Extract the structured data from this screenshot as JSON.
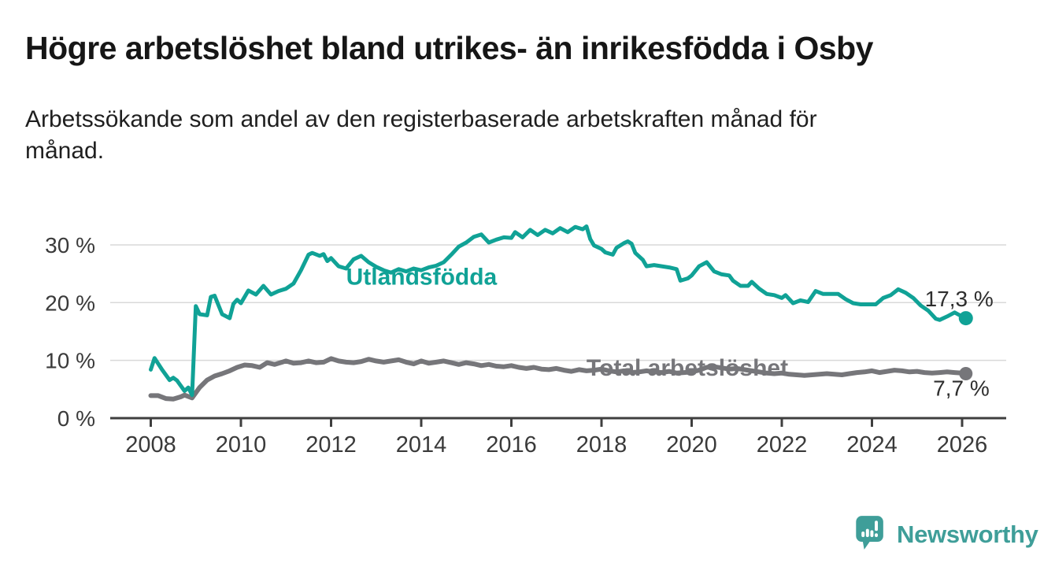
{
  "header": {
    "title": "Högre arbetslöshet bland utrikes- än inrikesfödda i Osby",
    "subtitle_line1": "Arbetssökande som andel av den registerbaserade arbetskraften månad för",
    "subtitle_line2": "månad."
  },
  "branding": {
    "logo_text": "Newsworthy",
    "logo_icon": "bar-chart-speech-bubble-icon",
    "brand_color": "#3f9e99"
  },
  "colors": {
    "foreign_born_series": "#10a296",
    "total_series": "#76767a",
    "title_text": "#161616",
    "axis_text": "#3a3a3a",
    "value_label_text": "#2e2e2e",
    "gridline": "#d9d9d9",
    "axis_line": "#3f3f3f",
    "background": "#ffffff"
  },
  "chart_data": {
    "type": "line",
    "title": "Högre arbetslöshet bland utrikes- än inrikesfödda i Osby",
    "subtitle": "Arbetssökande som andel av den registerbaserade arbetskraften månad för månad.",
    "unit": "percent of register-based labour force",
    "grid": "horizontal-only",
    "legend_position": "inline-labels-on-lines",
    "x_axis": {
      "start": "2008-01",
      "end": "2026-02",
      "tick_labels": [
        "2008",
        "2010",
        "2012",
        "2014",
        "2016",
        "2018",
        "2020",
        "2022",
        "2024",
        "2026"
      ]
    },
    "y_axis": {
      "ticks": [
        {
          "label": "0 %",
          "value": 0
        },
        {
          "label": "10 %",
          "value": 10
        },
        {
          "label": "20 %",
          "value": 20
        },
        {
          "label": "30 %",
          "value": 30
        }
      ],
      "gridline_values": [
        10,
        20,
        30
      ],
      "range": [
        0,
        34.5
      ]
    },
    "series": [
      {
        "name": "Utlandsfödda",
        "color": "#10a296",
        "stroke_width": 5,
        "label": {
          "text": "Utlandsfödda",
          "at": "2012-05",
          "value": 24.5
        },
        "end_label": {
          "text": "17,3 %",
          "value": 17.3
        },
        "points": [
          [
            "2008-01",
            8.4
          ],
          [
            "2008-02",
            10.4
          ],
          [
            "2008-04",
            8.4
          ],
          [
            "2008-06",
            6.6
          ],
          [
            "2008-07",
            7.0
          ],
          [
            "2008-08",
            6.5
          ],
          [
            "2008-10",
            4.7
          ],
          [
            "2008-11",
            5.3
          ],
          [
            "2008-12",
            4.0
          ],
          [
            "2009-01",
            19.4
          ],
          [
            "2009-02",
            18.0
          ],
          [
            "2009-04",
            17.8
          ],
          [
            "2009-05",
            21.0
          ],
          [
            "2009-06",
            21.2
          ],
          [
            "2009-08",
            18.0
          ],
          [
            "2009-10",
            17.3
          ],
          [
            "2009-11",
            19.8
          ],
          [
            "2009-12",
            20.5
          ],
          [
            "2010-01",
            19.9
          ],
          [
            "2010-03",
            22.1
          ],
          [
            "2010-05",
            21.4
          ],
          [
            "2010-07",
            22.9
          ],
          [
            "2010-09",
            21.4
          ],
          [
            "2010-11",
            22.0
          ],
          [
            "2011-01",
            22.4
          ],
          [
            "2011-03",
            23.3
          ],
          [
            "2011-05",
            25.6
          ],
          [
            "2011-07",
            28.3
          ],
          [
            "2011-08",
            28.6
          ],
          [
            "2011-10",
            28.1
          ],
          [
            "2011-11",
            28.4
          ],
          [
            "2011-12",
            27.2
          ],
          [
            "2012-01",
            27.7
          ],
          [
            "2012-03",
            26.3
          ],
          [
            "2012-05",
            25.9
          ],
          [
            "2012-07",
            27.5
          ],
          [
            "2012-09",
            28.1
          ],
          [
            "2012-11",
            27.0
          ],
          [
            "2013-01",
            26.2
          ],
          [
            "2013-03",
            25.6
          ],
          [
            "2013-05",
            25.2
          ],
          [
            "2013-07",
            25.8
          ],
          [
            "2013-09",
            25.4
          ],
          [
            "2013-11",
            25.9
          ],
          [
            "2014-01",
            25.6
          ],
          [
            "2014-03",
            26.1
          ],
          [
            "2014-05",
            26.4
          ],
          [
            "2014-07",
            27.0
          ],
          [
            "2014-09",
            28.3
          ],
          [
            "2014-11",
            29.7
          ],
          [
            "2015-01",
            30.4
          ],
          [
            "2015-03",
            31.4
          ],
          [
            "2015-05",
            31.8
          ],
          [
            "2015-07",
            30.4
          ],
          [
            "2015-09",
            30.9
          ],
          [
            "2015-11",
            31.3
          ],
          [
            "2016-01",
            31.2
          ],
          [
            "2016-02",
            32.2
          ],
          [
            "2016-04",
            31.3
          ],
          [
            "2016-06",
            32.6
          ],
          [
            "2016-08",
            31.7
          ],
          [
            "2016-10",
            32.6
          ],
          [
            "2016-12",
            32.0
          ],
          [
            "2017-02",
            32.9
          ],
          [
            "2017-04",
            32.2
          ],
          [
            "2017-06",
            33.1
          ],
          [
            "2017-08",
            32.7
          ],
          [
            "2017-09",
            33.2
          ],
          [
            "2017-10",
            31.0
          ],
          [
            "2017-11",
            29.9
          ],
          [
            "2018-01",
            29.3
          ],
          [
            "2018-02",
            28.7
          ],
          [
            "2018-04",
            28.3
          ],
          [
            "2018-05",
            29.5
          ],
          [
            "2018-07",
            30.3
          ],
          [
            "2018-08",
            30.6
          ],
          [
            "2018-09",
            30.2
          ],
          [
            "2018-10",
            28.6
          ],
          [
            "2018-12",
            27.4
          ],
          [
            "2019-01",
            26.3
          ],
          [
            "2019-03",
            26.5
          ],
          [
            "2019-05",
            26.3
          ],
          [
            "2019-07",
            26.1
          ],
          [
            "2019-09",
            25.8
          ],
          [
            "2019-10",
            23.8
          ],
          [
            "2019-12",
            24.2
          ],
          [
            "2020-01",
            24.7
          ],
          [
            "2020-03",
            26.3
          ],
          [
            "2020-05",
            27.0
          ],
          [
            "2020-07",
            25.4
          ],
          [
            "2020-09",
            24.9
          ],
          [
            "2020-11",
            24.7
          ],
          [
            "2020-12",
            23.8
          ],
          [
            "2021-02",
            22.9
          ],
          [
            "2021-04",
            22.9
          ],
          [
            "2021-05",
            23.6
          ],
          [
            "2021-07",
            22.4
          ],
          [
            "2021-09",
            21.5
          ],
          [
            "2021-11",
            21.3
          ],
          [
            "2022-01",
            20.8
          ],
          [
            "2022-02",
            21.3
          ],
          [
            "2022-04",
            19.9
          ],
          [
            "2022-06",
            20.4
          ],
          [
            "2022-08",
            20.1
          ],
          [
            "2022-10",
            22.0
          ],
          [
            "2022-12",
            21.5
          ],
          [
            "2023-02",
            21.5
          ],
          [
            "2023-04",
            21.5
          ],
          [
            "2023-06",
            20.6
          ],
          [
            "2023-08",
            19.9
          ],
          [
            "2023-10",
            19.7
          ],
          [
            "2023-12",
            19.7
          ],
          [
            "2024-02",
            19.7
          ],
          [
            "2024-04",
            20.8
          ],
          [
            "2024-06",
            21.3
          ],
          [
            "2024-08",
            22.3
          ],
          [
            "2024-10",
            21.7
          ],
          [
            "2024-12",
            20.8
          ],
          [
            "2025-02",
            19.5
          ],
          [
            "2025-04",
            18.6
          ],
          [
            "2025-06",
            17.2
          ],
          [
            "2025-07",
            17.0
          ],
          [
            "2025-09",
            17.6
          ],
          [
            "2025-11",
            18.3
          ],
          [
            "2026-01",
            17.6
          ],
          [
            "2026-02",
            17.3
          ]
        ]
      },
      {
        "name": "Total arbetslöshet",
        "color": "#76767a",
        "stroke_width": 6,
        "label": {
          "text": "Total arbetslöshet",
          "at": "2017-09",
          "value": 8.7
        },
        "end_label": {
          "text": "7,7 %",
          "value": 7.7
        },
        "points": [
          [
            "2008-01",
            3.9
          ],
          [
            "2008-03",
            3.9
          ],
          [
            "2008-05",
            3.4
          ],
          [
            "2008-07",
            3.3
          ],
          [
            "2008-09",
            3.7
          ],
          [
            "2008-10",
            4.0
          ],
          [
            "2008-12",
            3.5
          ],
          [
            "2009-02",
            5.3
          ],
          [
            "2009-04",
            6.6
          ],
          [
            "2009-06",
            7.3
          ],
          [
            "2009-08",
            7.7
          ],
          [
            "2009-10",
            8.2
          ],
          [
            "2009-12",
            8.8
          ],
          [
            "2010-02",
            9.2
          ],
          [
            "2010-04",
            9.1
          ],
          [
            "2010-06",
            8.8
          ],
          [
            "2010-08",
            9.6
          ],
          [
            "2010-10",
            9.3
          ],
          [
            "2010-12",
            9.7
          ],
          [
            "2011-01",
            9.9
          ],
          [
            "2011-03",
            9.5
          ],
          [
            "2011-05",
            9.6
          ],
          [
            "2011-07",
            9.9
          ],
          [
            "2011-09",
            9.6
          ],
          [
            "2011-11",
            9.7
          ],
          [
            "2012-01",
            10.3
          ],
          [
            "2012-03",
            9.9
          ],
          [
            "2012-05",
            9.7
          ],
          [
            "2012-07",
            9.6
          ],
          [
            "2012-09",
            9.8
          ],
          [
            "2012-11",
            10.2
          ],
          [
            "2013-01",
            9.9
          ],
          [
            "2013-03",
            9.7
          ],
          [
            "2013-05",
            9.9
          ],
          [
            "2013-07",
            10.1
          ],
          [
            "2013-09",
            9.7
          ],
          [
            "2013-11",
            9.4
          ],
          [
            "2014-01",
            9.9
          ],
          [
            "2014-03",
            9.5
          ],
          [
            "2014-05",
            9.7
          ],
          [
            "2014-07",
            9.9
          ],
          [
            "2014-09",
            9.6
          ],
          [
            "2014-11",
            9.3
          ],
          [
            "2015-01",
            9.6
          ],
          [
            "2015-03",
            9.4
          ],
          [
            "2015-05",
            9.1
          ],
          [
            "2015-07",
            9.3
          ],
          [
            "2015-09",
            9.0
          ],
          [
            "2015-11",
            8.9
          ],
          [
            "2016-01",
            9.1
          ],
          [
            "2016-03",
            8.8
          ],
          [
            "2016-05",
            8.6
          ],
          [
            "2016-07",
            8.8
          ],
          [
            "2016-09",
            8.5
          ],
          [
            "2016-11",
            8.4
          ],
          [
            "2017-01",
            8.6
          ],
          [
            "2017-03",
            8.3
          ],
          [
            "2017-05",
            8.1
          ],
          [
            "2017-07",
            8.4
          ],
          [
            "2017-09",
            8.2
          ],
          [
            "2017-11",
            8.3
          ],
          [
            "2018-01",
            8.5
          ],
          [
            "2018-03",
            8.2
          ],
          [
            "2018-05",
            8.0
          ],
          [
            "2018-07",
            8.2
          ],
          [
            "2018-09",
            7.9
          ],
          [
            "2018-11",
            8.0
          ],
          [
            "2019-01",
            8.2
          ],
          [
            "2019-03",
            8.0
          ],
          [
            "2019-05",
            7.9
          ],
          [
            "2019-07",
            8.1
          ],
          [
            "2019-09",
            7.8
          ],
          [
            "2019-11",
            7.9
          ],
          [
            "2020-01",
            8.0
          ],
          [
            "2020-03",
            8.3
          ],
          [
            "2020-05",
            8.8
          ],
          [
            "2020-07",
            8.9
          ],
          [
            "2020-09",
            8.7
          ],
          [
            "2020-11",
            8.5
          ],
          [
            "2021-01",
            8.6
          ],
          [
            "2021-03",
            8.4
          ],
          [
            "2021-05",
            8.2
          ],
          [
            "2021-07",
            8.0
          ],
          [
            "2021-09",
            7.8
          ],
          [
            "2021-11",
            7.7
          ],
          [
            "2022-01",
            7.8
          ],
          [
            "2022-03",
            7.6
          ],
          [
            "2022-05",
            7.5
          ],
          [
            "2022-07",
            7.4
          ],
          [
            "2022-09",
            7.5
          ],
          [
            "2022-11",
            7.6
          ],
          [
            "2023-01",
            7.7
          ],
          [
            "2023-03",
            7.6
          ],
          [
            "2023-05",
            7.5
          ],
          [
            "2023-07",
            7.7
          ],
          [
            "2023-09",
            7.9
          ],
          [
            "2023-11",
            8.0
          ],
          [
            "2024-01",
            8.2
          ],
          [
            "2024-03",
            7.9
          ],
          [
            "2024-05",
            8.1
          ],
          [
            "2024-07",
            8.3
          ],
          [
            "2024-09",
            8.2
          ],
          [
            "2024-11",
            8.0
          ],
          [
            "2025-01",
            8.1
          ],
          [
            "2025-03",
            7.9
          ],
          [
            "2025-05",
            7.8
          ],
          [
            "2025-07",
            7.9
          ],
          [
            "2025-09",
            8.0
          ],
          [
            "2025-11",
            7.9
          ],
          [
            "2026-01",
            7.8
          ],
          [
            "2026-02",
            7.7
          ]
        ]
      }
    ]
  }
}
